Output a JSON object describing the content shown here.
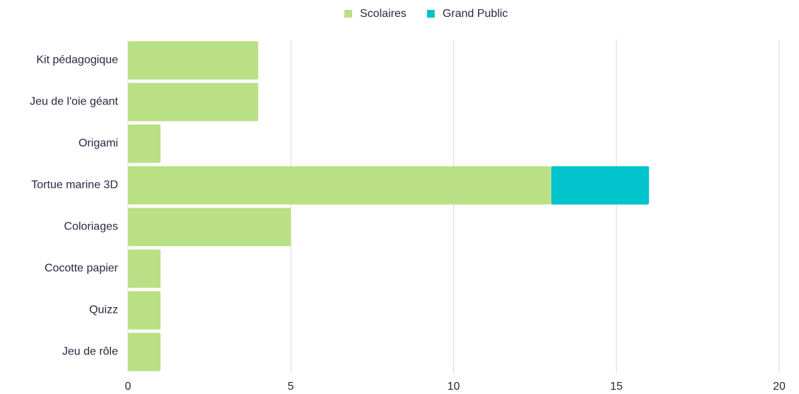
{
  "chart_data": {
    "type": "stacked_barh",
    "categories": [
      "Kit pédagogique",
      "Jeu de l'oie géant",
      "Origami",
      "Tortue marine 3D",
      "Coloriages",
      "Cocotte papier",
      "Quizz",
      "Jeu de rôle"
    ],
    "series": [
      {
        "name": "Scolaires",
        "color": "#b9e084",
        "values": [
          4,
          4,
          1,
          13,
          5,
          1,
          1,
          1
        ]
      },
      {
        "name": "Grand Public",
        "color": "#00c3cc",
        "values": [
          0,
          0,
          0,
          3,
          0,
          0,
          0,
          0
        ]
      }
    ],
    "xlim": [
      0,
      20
    ],
    "xticks": [
      0,
      5,
      10,
      15,
      20
    ],
    "grid": true,
    "legend": "top"
  }
}
